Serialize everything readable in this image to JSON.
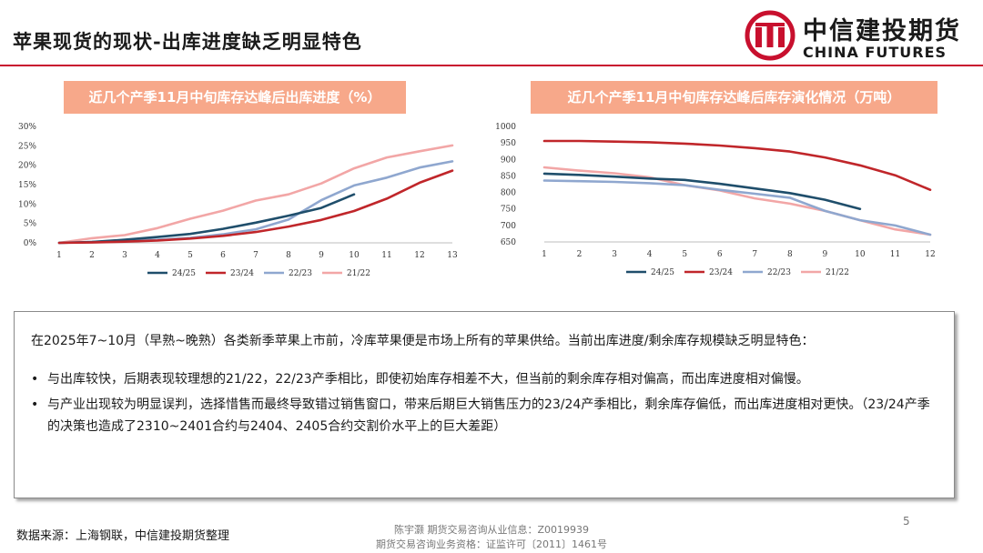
{
  "page": {
    "title": "苹果现货的现状-出库进度缺乏明显特色",
    "brand": {
      "cn": "中信建投期货",
      "en": "CHINA FUTURES",
      "color": "#c8102e",
      "logo_icon": "citic-logo-icon"
    },
    "accent": "#c8102e",
    "page_number": "5"
  },
  "chart_data": [
    {
      "type": "line",
      "title": "近几个产季11月中旬库存达峰后出库进度（%）",
      "x": [
        1,
        2,
        3,
        4,
        5,
        6,
        7,
        8,
        9,
        10,
        11,
        12,
        13
      ],
      "xlim": [
        1,
        13
      ],
      "ylim": [
        0,
        30
      ],
      "yticks": [
        "0%",
        "5%",
        "10%",
        "15%",
        "20%",
        "25%",
        "30%"
      ],
      "grid": false,
      "legend": "bottom",
      "series": [
        {
          "name": "24/25",
          "color": "#1f4e6b",
          "values": [
            0,
            0.2,
            0.8,
            1.5,
            2.3,
            3.6,
            5.2,
            7.0,
            9.0,
            12.5,
            null,
            null,
            null
          ]
        },
        {
          "name": "23/24",
          "color": "#c0262a",
          "values": [
            0,
            0.1,
            0.3,
            0.6,
            1.1,
            1.8,
            2.8,
            4.2,
            5.9,
            8.2,
            11.4,
            15.5,
            18.6
          ]
        },
        {
          "name": "22/23",
          "color": "#8fa7cf",
          "values": [
            0,
            0.2,
            0.5,
            0.8,
            1.3,
            2.2,
            3.5,
            6.0,
            11.0,
            14.8,
            16.8,
            19.4,
            21.0
          ]
        },
        {
          "name": "21/22",
          "color": "#f2a6a6",
          "values": [
            0,
            1.2,
            2.0,
            3.8,
            6.2,
            8.3,
            10.9,
            12.5,
            15.3,
            19.2,
            22.0,
            23.6,
            25.1
          ]
        }
      ]
    },
    {
      "type": "line",
      "title": "近几个产季11月中旬库存达峰后库存演化情况（万吨）",
      "x": [
        1,
        2,
        3,
        4,
        5,
        6,
        7,
        8,
        9,
        10,
        11,
        12
      ],
      "xlim": [
        1,
        12
      ],
      "ylim": [
        650,
        1000
      ],
      "yticks": [
        "650",
        "700",
        "750",
        "800",
        "850",
        "900",
        "950",
        "1000"
      ],
      "grid": false,
      "legend": "bottom",
      "series": [
        {
          "name": "24/25",
          "color": "#1f4e6b",
          "values": [
            857,
            853,
            848,
            842,
            838,
            826,
            812,
            798,
            778,
            750,
            null,
            null
          ]
        },
        {
          "name": "23/24",
          "color": "#c0262a",
          "values": [
            956,
            956,
            954,
            952,
            948,
            942,
            934,
            924,
            906,
            882,
            852,
            808
          ]
        },
        {
          "name": "22/23",
          "color": "#8fa7cf",
          "values": [
            836,
            834,
            832,
            828,
            822,
            808,
            796,
            784,
            744,
            716,
            700,
            672
          ]
        },
        {
          "name": "21/22",
          "color": "#f2a6a6",
          "values": [
            876,
            866,
            858,
            846,
            822,
            806,
            782,
            766,
            744,
            716,
            688,
            672
          ]
        }
      ]
    }
  ],
  "textbox": {
    "intro": "在2025年7~10月（早熟~晚熟）各类新季苹果上市前，冷库苹果便是市场上所有的苹果供给。当前出库进度/剩余库存规模缺乏明显特色：",
    "bullet_symbol": "•",
    "bullets": [
      "与出库较快，后期表现较理想的21/22，22/23产季相比，即使初始库存相差不大，但当前的剩余库存相对偏高，而出库进度相对偏慢。",
      "与产业出现较为明显误判，选择惜售而最终导致错过销售窗口，带来后期巨大销售压力的23/24产季相比，剩余库存偏低，而出库进度相对更快。（23/24产季的决策也造成了2310~2401合约与2404、2405合约交割价水平上的巨大差距）"
    ]
  },
  "footer": {
    "source": "数据来源：上海钢联，中信建投期货整理",
    "analyst": "陈宇灏 期货交易咨询从业信息：Z0019939",
    "license": "期货交易咨询业务资格：证监许可〔2011〕1461号"
  }
}
